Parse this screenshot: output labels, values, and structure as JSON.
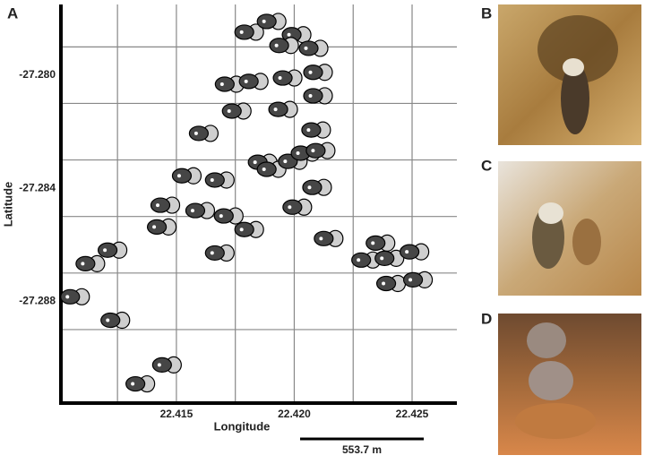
{
  "panel_labels": [
    "A",
    "B",
    "C",
    "D"
  ],
  "chart_data": {
    "type": "scatter",
    "xlabel": "Longitude",
    "ylabel": "Latitude",
    "xlim": [
      22.4101,
      22.4269
    ],
    "ylim": [
      -27.2916,
      -27.2775
    ],
    "xticks": [
      {
        "value": 22.415,
        "label": "22.415"
      },
      {
        "value": 22.42,
        "label": "22.420"
      },
      {
        "value": 22.425,
        "label": "22.425"
      }
    ],
    "yticks": [
      {
        "value": -27.28,
        "label": "-27.280"
      },
      {
        "value": -27.284,
        "label": "-27.284"
      },
      {
        "value": -27.288,
        "label": "-27.288"
      }
    ],
    "xgrid": [
      22.4125,
      22.415,
      22.4175,
      22.42,
      22.4225,
      22.425
    ],
    "ygrid": [
      -27.279,
      -27.281,
      -27.283,
      -27.285,
      -27.287,
      -27.289
    ],
    "grid": true,
    "marker_colors": [
      "#464646",
      "#cfcfcf"
    ],
    "scale_bar": "553.7 m",
    "x": [
      22.41788,
      22.41883,
      22.41989,
      22.41936,
      22.42061,
      22.41705,
      22.41807,
      22.41951,
      22.4208,
      22.4208,
      22.41735,
      22.41932,
      22.41595,
      22.42072,
      22.41845,
      22.41883,
      22.41973,
      22.42027,
      22.42091,
      22.41523,
      22.41663,
      22.42076,
      22.41432,
      22.4158,
      22.41701,
      22.41992,
      22.41417,
      22.41788,
      22.42125,
      22.41208,
      22.41114,
      22.41663,
      22.42345,
      22.42284,
      22.42383,
      22.42489,
      22.4239,
      22.42504,
      22.41049,
      22.4122,
      22.41439,
      22.41326
    ],
    "y": [
      -27.27848,
      -27.2781,
      -27.27857,
      -27.27895,
      -27.27905,
      -27.28032,
      -27.28022,
      -27.2801,
      -27.2799,
      -27.28073,
      -27.28127,
      -27.28121,
      -27.28206,
      -27.28194,
      -27.28308,
      -27.28333,
      -27.28305,
      -27.28276,
      -27.28267,
      -27.28356,
      -27.28371,
      -27.28397,
      -27.2846,
      -27.28479,
      -27.28498,
      -27.28467,
      -27.28537,
      -27.28546,
      -27.28578,
      -27.28619,
      -27.28667,
      -27.28629,
      -27.28594,
      -27.28654,
      -27.28648,
      -27.28625,
      -27.28737,
      -27.28724,
      -27.28784,
      -27.28867,
      -27.29025,
      -27.29092
    ]
  }
}
